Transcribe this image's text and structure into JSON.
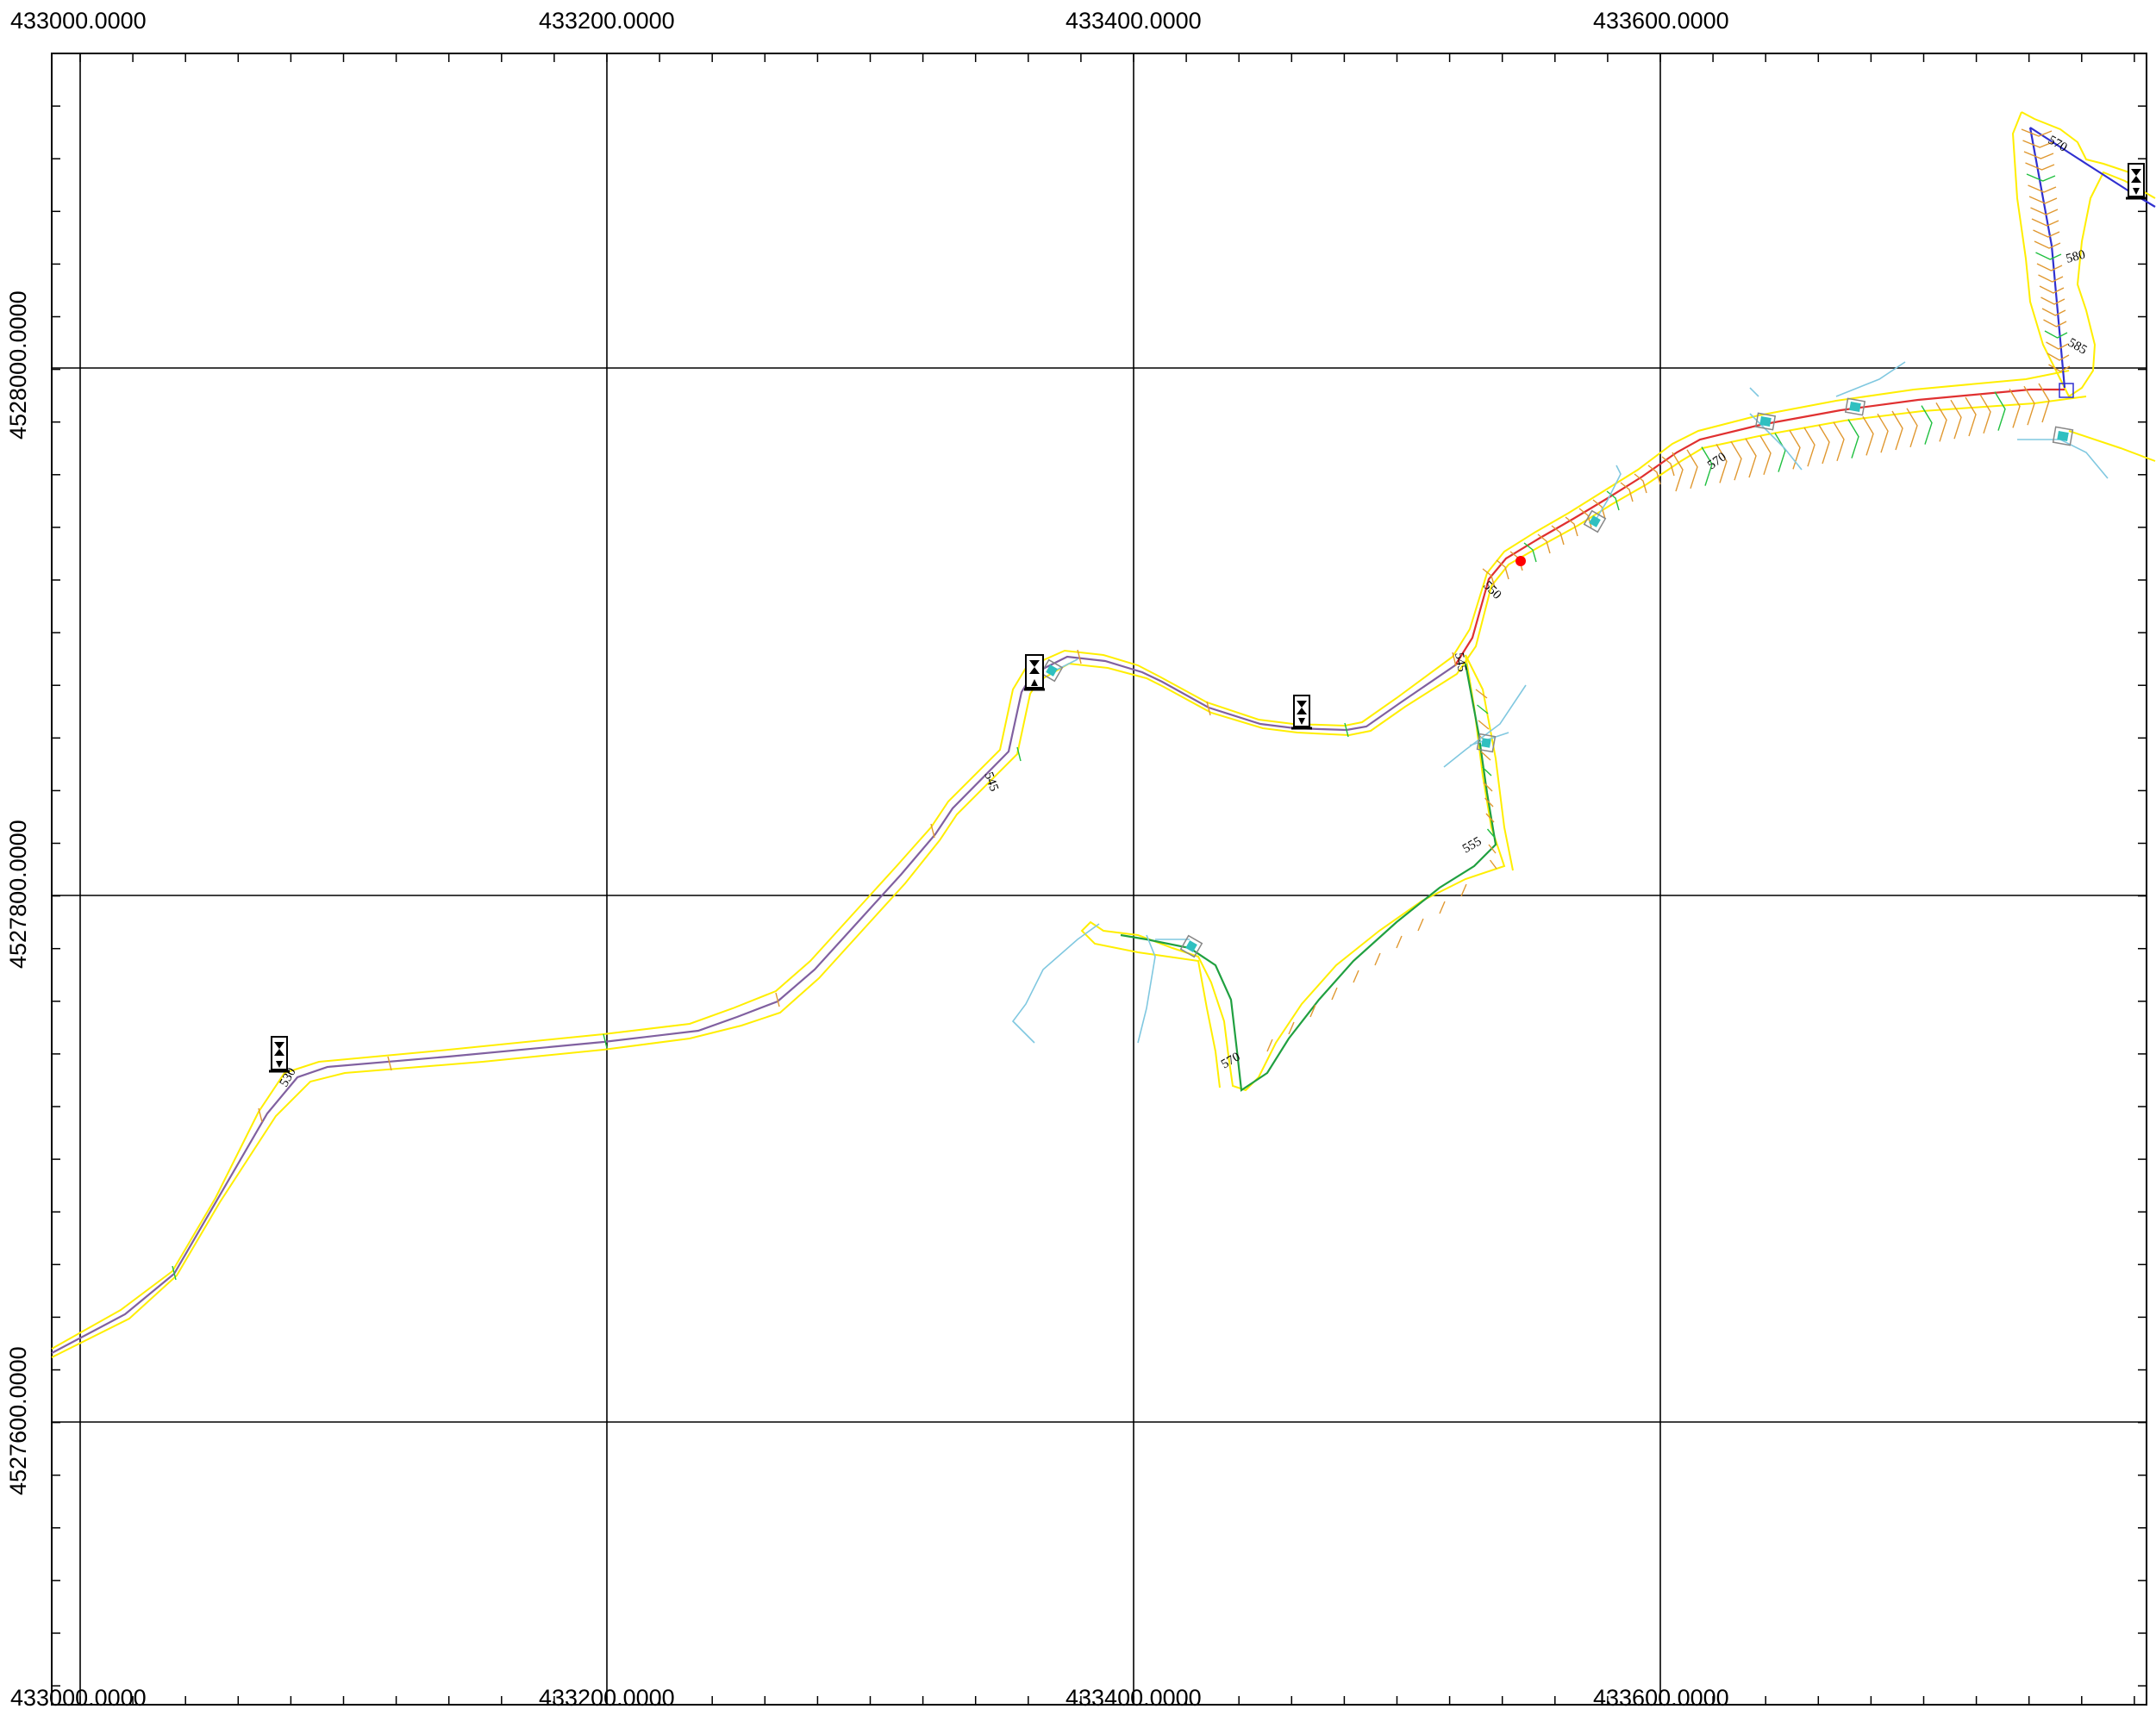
{
  "map": {
    "x_labels_top": [
      "433000.0000",
      "433200.0000",
      "433400.0000",
      "433600.0000"
    ],
    "x_labels_bottom": [
      "433000.0000",
      "433200.0000",
      "433400.0000",
      "433600.0000"
    ],
    "y_labels": [
      "4528000.0000",
      "4527800.0000",
      "4527600.0000"
    ],
    "contour_labels": [
      "530",
      "545",
      "550",
      "545",
      "555",
      "570",
      "570",
      "570",
      "580",
      "585"
    ],
    "colors": {
      "background": "#ffffff",
      "grid": "#000000",
      "road_edge": "#ffee00",
      "road_center_orange": "#e0a040",
      "road_center_purple": "#8060a0",
      "contour_orange": "#e09830",
      "contour_green": "#20c040",
      "centerline_blue": "#3030d0",
      "centerline_red": "#e03030",
      "drainage": "#80c8e0",
      "culvert": "#30c0c0",
      "marker": "#000000",
      "point_red": "#ff0000"
    },
    "icons": [
      "road-sign-icon",
      "culvert-icon"
    ]
  }
}
